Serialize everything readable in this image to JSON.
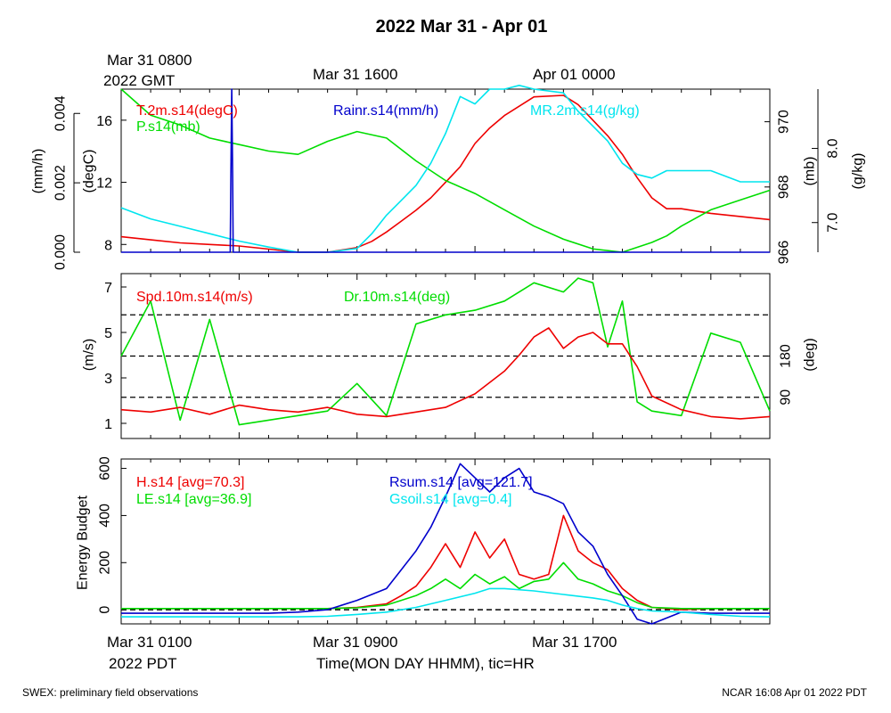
{
  "title": "2022 Mar 31 - Apr 01",
  "top_time_labels": [
    "Mar 31 0800",
    "2022 GMT",
    "Mar 31 1600",
    "Apr 01 0000"
  ],
  "bottom_time_labels": [
    "Mar 31 0100",
    "2022 PDT",
    "Mar 31 0900",
    "Mar 31 1700"
  ],
  "xlabel": "Time(MON DAY HHMM), tic=HR",
  "footer_left": "SWEX: preliminary field observations",
  "footer_right": "NCAR 16:08 Apr 01 2022 PDT",
  "colors": {
    "red": "#ee0000",
    "green": "#00dd00",
    "blue": "#0000cc",
    "cyan": "#00e5ee",
    "black": "#000000"
  },
  "chart_data": [
    {
      "type": "line",
      "panel": "top",
      "x_unit": "hours since Mar 31 0000 PDT",
      "xlim": [
        0,
        22
      ],
      "axes": {
        "rain": {
          "label": "(mm/h)",
          "ticks": [
            "0.000",
            "0.002",
            "0.004"
          ],
          "range": [
            0,
            0.0047
          ]
        },
        "temp": {
          "label": "(degC)",
          "ticks": [
            "8",
            "12",
            "16"
          ],
          "range": [
            7.5,
            18.0
          ]
        },
        "pressure": {
          "label": "(mb)",
          "ticks": [
            "966",
            "968",
            "970"
          ],
          "range": [
            966.0,
            971.0
          ]
        },
        "mixing_ratio": {
          "label": "(g/kg)",
          "ticks": [
            "7.0",
            "8.0"
          ],
          "range": [
            6.6,
            8.8
          ]
        }
      },
      "series": [
        {
          "name": "T.2m.s14(degC)",
          "color": "red",
          "axis": "temp",
          "x": [
            0,
            1,
            2,
            3,
            4,
            5,
            6,
            7,
            8,
            8.5,
            9,
            9.5,
            10,
            10.5,
            11,
            11.5,
            12,
            12.5,
            13,
            14,
            15,
            15.5,
            16,
            16.5,
            17,
            17.5,
            18,
            18.5,
            19,
            20,
            21,
            22
          ],
          "y": [
            8.5,
            8.3,
            8.1,
            8.0,
            7.9,
            7.7,
            7.5,
            7.5,
            7.8,
            8.2,
            8.8,
            9.5,
            10.2,
            11.0,
            12.0,
            13.0,
            14.5,
            15.5,
            16.3,
            17.5,
            17.6,
            17.0,
            16.0,
            15.0,
            13.8,
            12.3,
            11.0,
            10.3,
            10.3,
            10.0,
            9.8,
            9.6
          ]
        },
        {
          "name": "P.s14(mb)",
          "color": "green",
          "axis": "pressure",
          "x": [
            0,
            1,
            2,
            3,
            4,
            5,
            6,
            7,
            8,
            9,
            10,
            11,
            12,
            13,
            14,
            15,
            16,
            17,
            18,
            18.5,
            19,
            20,
            21,
            22
          ],
          "y": [
            971.0,
            970.2,
            969.9,
            969.5,
            969.3,
            969.1,
            969.0,
            969.4,
            969.7,
            969.5,
            968.8,
            968.2,
            967.8,
            967.3,
            966.8,
            966.4,
            966.1,
            966.0,
            966.3,
            966.5,
            966.8,
            967.3,
            967.6,
            967.9
          ]
        },
        {
          "name": "MR.2m.s14(g/kg)",
          "color": "cyan",
          "axis": "mixing_ratio",
          "x": [
            0,
            1,
            2,
            3,
            4,
            5,
            6,
            7,
            8,
            8.5,
            9,
            9.5,
            10,
            10.5,
            11,
            11.5,
            12,
            12.5,
            13,
            13.5,
            14,
            15,
            15.5,
            16,
            16.5,
            17,
            17.5,
            18,
            18.5,
            19,
            20,
            21,
            22
          ],
          "y": [
            7.2,
            7.05,
            6.95,
            6.85,
            6.75,
            6.67,
            6.6,
            6.6,
            6.65,
            6.85,
            7.1,
            7.3,
            7.5,
            7.8,
            8.2,
            8.7,
            8.6,
            8.8,
            8.8,
            8.85,
            8.8,
            8.75,
            8.5,
            8.3,
            8.1,
            7.8,
            7.65,
            7.6,
            7.7,
            7.7,
            7.7,
            7.55,
            7.55
          ]
        },
        {
          "name": "Rainr.s14(mm/h)",
          "color": "blue",
          "axis": "rain",
          "x": [
            0,
            3.7,
            3.72,
            3.75,
            3.78,
            3.8,
            22
          ],
          "y": [
            0,
            0,
            0.0021,
            0.0047,
            0.0022,
            0,
            0
          ]
        }
      ]
    },
    {
      "type": "line",
      "panel": "middle",
      "x_unit": "hours since Mar 31 0000 PDT",
      "xlim": [
        0,
        22
      ],
      "axes": {
        "speed": {
          "label": "(m/s)",
          "ticks": [
            "1",
            "3",
            "5",
            "7"
          ],
          "range": [
            0,
            7
          ]
        },
        "direction": {
          "label": "(deg)",
          "ticks": [
            "90",
            "180"
          ],
          "range": [
            0,
            360
          ]
        }
      },
      "reference_lines_deg": [
        90,
        180,
        270
      ],
      "series": [
        {
          "name": "Spd.10m.s14(m/s)",
          "color": "red",
          "axis": "speed",
          "x": [
            0,
            1,
            2,
            3,
            4,
            5,
            6,
            7,
            8,
            9,
            10,
            11,
            12,
            13,
            13.5,
            14,
            14.5,
            15,
            15.5,
            16,
            16.5,
            17,
            17.5,
            18,
            19,
            20,
            21,
            22
          ],
          "y": [
            1.6,
            1.5,
            1.7,
            1.4,
            1.8,
            1.6,
            1.5,
            1.7,
            1.4,
            1.3,
            1.5,
            1.7,
            2.3,
            3.3,
            4.0,
            4.8,
            5.2,
            4.3,
            4.8,
            5.0,
            4.5,
            4.5,
            3.5,
            2.2,
            1.6,
            1.3,
            1.2,
            1.3
          ]
        },
        {
          "name": "Dr.10m.s14(deg)",
          "color": "green",
          "axis": "direction",
          "x": [
            0,
            1,
            2,
            3,
            4,
            5,
            6,
            7,
            8,
            9,
            10,
            11,
            12,
            13,
            14,
            15,
            15.5,
            16,
            16.5,
            17,
            17.5,
            18,
            19,
            20,
            21,
            22
          ],
          "y": [
            180,
            300,
            40,
            260,
            30,
            40,
            50,
            60,
            120,
            50,
            250,
            270,
            280,
            300,
            340,
            320,
            350,
            340,
            200,
            300,
            80,
            60,
            50,
            230,
            210,
            60
          ]
        }
      ]
    },
    {
      "type": "line",
      "panel": "bottom",
      "x_unit": "hours since Mar 31 0000 PDT",
      "xlim": [
        0,
        22
      ],
      "ylabel": "Energy Budget",
      "yticks": [
        "0",
        "200",
        "400",
        "600"
      ],
      "ylim": [
        -60,
        640
      ],
      "zero_line": true,
      "series": [
        {
          "name": "H.s14 [avg=70.3]",
          "color": "red",
          "x": [
            0,
            1,
            2,
            3,
            4,
            5,
            6,
            7,
            8,
            9,
            9.5,
            10,
            10.5,
            11,
            11.5,
            12,
            12.5,
            13,
            13.5,
            14,
            14.5,
            15,
            15.5,
            16,
            16.5,
            17,
            17.5,
            18,
            19,
            20,
            21,
            22
          ],
          "y": [
            5,
            5,
            5,
            5,
            5,
            5,
            5,
            5,
            10,
            25,
            60,
            100,
            180,
            280,
            180,
            330,
            220,
            300,
            150,
            130,
            150,
            400,
            250,
            200,
            170,
            90,
            40,
            10,
            0,
            5,
            5,
            5
          ]
        },
        {
          "name": "LE.s14 [avg=36.9]",
          "color": "green",
          "x": [
            0,
            1,
            2,
            3,
            4,
            5,
            6,
            7,
            8,
            9,
            9.5,
            10,
            10.5,
            11,
            11.5,
            12,
            12.5,
            13,
            13.5,
            14,
            14.5,
            15,
            15.5,
            16,
            16.5,
            17,
            17.5,
            18,
            19,
            20,
            21,
            22
          ],
          "y": [
            5,
            5,
            5,
            5,
            5,
            5,
            5,
            5,
            8,
            20,
            40,
            60,
            90,
            130,
            90,
            150,
            110,
            140,
            90,
            120,
            130,
            200,
            130,
            110,
            80,
            60,
            30,
            10,
            5,
            5,
            5,
            5
          ]
        },
        {
          "name": "Rsum.s14 [avg=121.7]",
          "color": "blue",
          "x": [
            0,
            1,
            2,
            3,
            4,
            5,
            6,
            7,
            8,
            9,
            9.5,
            10,
            10.5,
            11,
            11.5,
            12,
            12.5,
            13,
            13.5,
            14,
            14.5,
            15,
            15.5,
            16,
            16.5,
            17,
            17.5,
            18,
            19,
            20,
            21,
            22
          ],
          "y": [
            -15,
            -15,
            -15,
            -15,
            -15,
            -15,
            -10,
            0,
            40,
            90,
            170,
            250,
            350,
            480,
            620,
            560,
            500,
            560,
            600,
            500,
            480,
            450,
            330,
            270,
            150,
            60,
            -40,
            -60,
            -10,
            -15,
            -15,
            -15
          ]
        },
        {
          "name": "Gsoil.s14 [avg=0.4]",
          "color": "cyan",
          "x": [
            0,
            1,
            2,
            3,
            4,
            5,
            6,
            7,
            8,
            9,
            10,
            11,
            12,
            12.5,
            13,
            14,
            15,
            16,
            16.5,
            17,
            17.5,
            18,
            19,
            20,
            21,
            22
          ],
          "y": [
            -30,
            -30,
            -30,
            -30,
            -30,
            -30,
            -30,
            -28,
            -20,
            -10,
            10,
            40,
            70,
            90,
            90,
            80,
            65,
            50,
            40,
            20,
            5,
            -5,
            -10,
            -20,
            -28,
            -30
          ]
        }
      ]
    }
  ]
}
